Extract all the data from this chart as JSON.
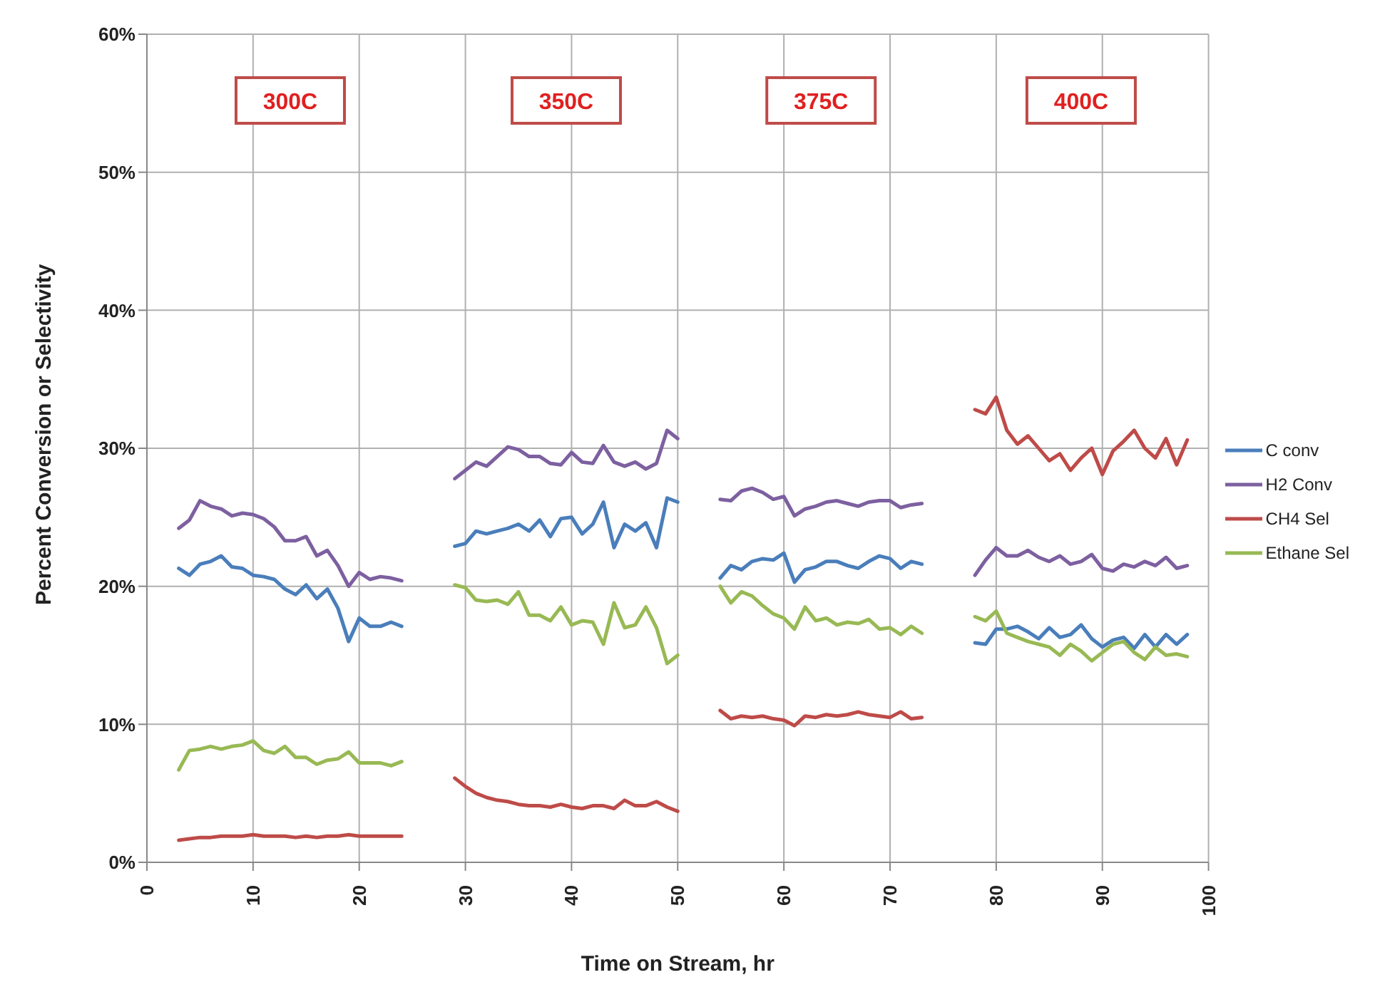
{
  "chart_data": {
    "type": "line",
    "xlabel": "Time on Stream, hr",
    "ylabel": "Percent Conversion or Selectivity",
    "x": [
      3,
      4,
      5,
      6,
      7,
      8,
      9,
      10,
      11,
      12,
      13,
      14,
      15,
      16,
      17,
      18,
      19,
      20,
      21,
      22,
      23,
      24,
      26,
      29,
      30,
      31,
      32,
      33,
      34,
      35,
      36,
      37,
      38,
      39,
      40,
      41,
      42,
      43,
      44,
      45,
      46,
      47,
      48,
      49,
      50,
      52,
      54,
      55,
      56,
      57,
      58,
      59,
      60,
      61,
      62,
      63,
      64,
      65,
      66,
      67,
      68,
      69,
      70,
      71,
      72,
      73,
      76,
      78,
      79,
      80,
      81,
      82,
      83,
      84,
      85,
      86,
      87,
      88,
      89,
      90,
      91,
      92,
      93,
      94,
      95,
      96,
      97,
      98
    ],
    "series": [
      {
        "name": "C conv",
        "color": "#4a7ebb",
        "values": [
          21.3,
          20.8,
          21.6,
          21.8,
          22.2,
          21.4,
          21.3,
          20.8,
          20.7,
          20.5,
          19.8,
          19.4,
          20.1,
          19.1,
          19.8,
          18.4,
          16.0,
          17.7,
          17.1,
          17.1,
          17.4,
          17.1,
          null,
          22.9,
          23.1,
          24.0,
          23.8,
          24.0,
          24.2,
          24.5,
          24.0,
          24.8,
          23.6,
          24.9,
          25.0,
          23.8,
          24.5,
          26.1,
          22.8,
          24.5,
          24.0,
          24.6,
          22.8,
          26.4,
          26.1,
          null,
          20.6,
          21.5,
          21.2,
          21.8,
          22.0,
          21.9,
          22.4,
          20.3,
          21.2,
          21.4,
          21.8,
          21.8,
          21.5,
          21.3,
          21.8,
          22.2,
          22.0,
          21.3,
          21.8,
          21.6,
          null,
          15.9,
          15.8,
          16.9,
          16.9,
          17.1,
          16.7,
          16.2,
          17.0,
          16.3,
          16.5,
          17.2,
          16.2,
          15.6,
          16.1,
          16.3,
          15.5,
          16.5,
          15.6,
          16.5,
          15.8,
          16.5
        ]
      },
      {
        "name": "H2 Conv",
        "color": "#7d60a0",
        "values": [
          24.2,
          24.8,
          26.2,
          25.8,
          25.6,
          25.1,
          25.3,
          25.2,
          24.9,
          24.3,
          23.3,
          23.3,
          23.6,
          22.2,
          22.6,
          21.5,
          20.0,
          21.0,
          20.5,
          20.7,
          20.6,
          20.4,
          null,
          27.8,
          28.4,
          29.0,
          28.7,
          29.4,
          30.1,
          29.9,
          29.4,
          29.4,
          28.9,
          28.8,
          29.7,
          29.0,
          28.9,
          30.2,
          29.0,
          28.7,
          29.0,
          28.5,
          28.9,
          31.3,
          30.7,
          null,
          26.3,
          26.2,
          26.9,
          27.1,
          26.8,
          26.3,
          26.5,
          25.1,
          25.6,
          25.8,
          26.1,
          26.2,
          26.0,
          25.8,
          26.1,
          26.2,
          26.2,
          25.7,
          25.9,
          26.0,
          null,
          20.8,
          21.9,
          22.8,
          22.2,
          22.2,
          22.6,
          22.1,
          21.8,
          22.2,
          21.6,
          21.8,
          22.3,
          21.3,
          21.1,
          21.6,
          21.4,
          21.8,
          21.5,
          22.1,
          21.3,
          21.5
        ]
      },
      {
        "name": "CH4 Sel",
        "color": "#be4b48",
        "values": [
          1.6,
          1.7,
          1.8,
          1.8,
          1.9,
          1.9,
          1.9,
          2.0,
          1.9,
          1.9,
          1.9,
          1.8,
          1.9,
          1.8,
          1.9,
          1.9,
          2.0,
          1.9,
          1.9,
          1.9,
          1.9,
          1.9,
          null,
          6.1,
          5.5,
          5.0,
          4.7,
          4.5,
          4.4,
          4.2,
          4.1,
          4.1,
          4.0,
          4.2,
          4.0,
          3.9,
          4.1,
          4.1,
          3.9,
          4.5,
          4.1,
          4.1,
          4.4,
          4.0,
          3.7,
          null,
          11.0,
          10.4,
          10.6,
          10.5,
          10.6,
          10.4,
          10.3,
          9.9,
          10.6,
          10.5,
          10.7,
          10.6,
          10.7,
          10.9,
          10.7,
          10.6,
          10.5,
          10.9,
          10.4,
          10.5,
          null,
          32.8,
          32.5,
          33.7,
          31.3,
          30.3,
          30.9,
          30.0,
          29.1,
          29.6,
          28.4,
          29.3,
          30.0,
          28.1,
          29.8,
          30.5,
          31.3,
          30.0,
          29.3,
          30.7,
          28.8,
          30.6
        ]
      },
      {
        "name": "Ethane Sel",
        "color": "#98b954",
        "values": [
          6.7,
          8.1,
          8.2,
          8.4,
          8.2,
          8.4,
          8.5,
          8.8,
          8.1,
          7.9,
          8.4,
          7.6,
          7.6,
          7.1,
          7.4,
          7.5,
          8.0,
          7.2,
          7.2,
          7.2,
          7.0,
          7.3,
          null,
          20.1,
          19.9,
          19.0,
          18.9,
          19.0,
          18.7,
          19.6,
          17.9,
          17.9,
          17.5,
          18.5,
          17.2,
          17.5,
          17.4,
          15.8,
          18.8,
          17.0,
          17.2,
          18.5,
          17.0,
          14.4,
          15.0,
          null,
          20.0,
          18.8,
          19.6,
          19.3,
          18.6,
          18.0,
          17.7,
          16.9,
          18.5,
          17.5,
          17.7,
          17.2,
          17.4,
          17.3,
          17.6,
          16.9,
          17.0,
          16.5,
          17.1,
          16.6,
          null,
          17.8,
          17.5,
          18.2,
          16.6,
          16.3,
          16.0,
          15.8,
          15.6,
          15.0,
          15.8,
          15.3,
          14.6,
          15.2,
          15.8,
          16.0,
          15.2,
          14.7,
          15.6,
          15.0,
          15.1,
          14.9
        ]
      }
    ],
    "xlim": [
      0,
      100
    ],
    "xticks": [
      0,
      10,
      20,
      30,
      40,
      50,
      60,
      70,
      80,
      90,
      100
    ],
    "ylim": [
      0,
      60
    ],
    "yticks": [
      {
        "value": 0,
        "label": "0%"
      },
      {
        "value": 10,
        "label": "10%"
      },
      {
        "value": 20,
        "label": "20%"
      },
      {
        "value": 30,
        "label": "30%"
      },
      {
        "value": 40,
        "label": "40%"
      },
      {
        "value": 50,
        "label": "50%"
      },
      {
        "value": 60,
        "label": "60%"
      }
    ],
    "annotations": [
      "300C",
      "350C",
      "375C",
      "400C"
    ],
    "grid": true,
    "legend": "right",
    "marker": "none",
    "line_style": "solid"
  }
}
